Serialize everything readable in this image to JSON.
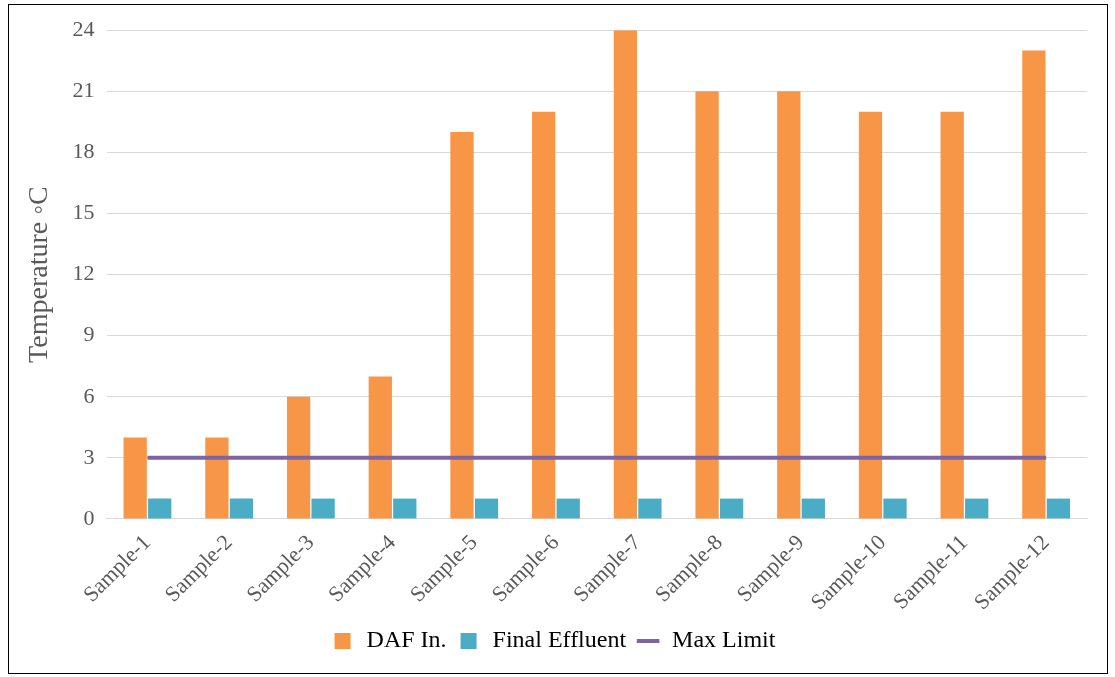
{
  "chart_data": {
    "type": "bar",
    "ylabel": "Temperature ◦C",
    "categories": [
      "Sample-1",
      "Sample-2",
      "Sample-3",
      "Sample-4",
      "Sample-5",
      "Sample-6",
      "Sample-7",
      "Sample-8",
      "Sample-9",
      "Sample-10",
      "Sample-11",
      "Sample-12"
    ],
    "series": [
      {
        "name": "DAF In.",
        "color": "#f79646",
        "values": [
          4,
          4,
          6,
          7,
          19,
          20,
          24,
          21,
          21,
          20,
          20,
          23
        ]
      },
      {
        "name": "Final Effluent",
        "color": "#4bacc6",
        "values": [
          1,
          1,
          1,
          1,
          1,
          1,
          1,
          1,
          1,
          1,
          1,
          1
        ]
      },
      {
        "name": "Max Limit",
        "type": "line",
        "color": "#8064a2",
        "values": [
          3,
          3,
          3,
          3,
          3,
          3,
          3,
          3,
          3,
          3,
          3,
          3
        ]
      }
    ],
    "ylim": [
      0,
      24
    ],
    "yticks": [
      0,
      3,
      6,
      9,
      12,
      15,
      18,
      21,
      24
    ],
    "grid": "y",
    "legend": "bottom"
  }
}
